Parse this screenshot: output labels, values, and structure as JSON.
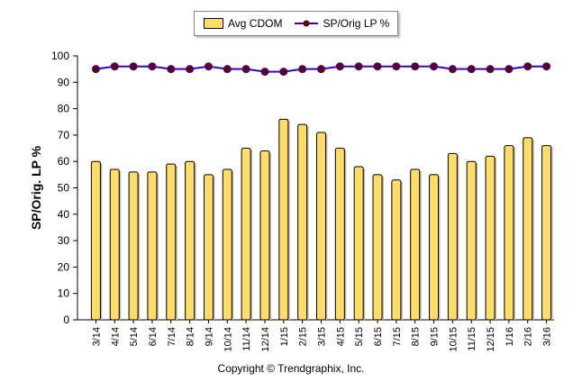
{
  "chart_data": {
    "type": "bar+line",
    "categories": [
      "3/14",
      "4/14",
      "5/14",
      "6/14",
      "7/14",
      "8/14",
      "9/14",
      "10/14",
      "11/14",
      "12/14",
      "1/15",
      "2/15",
      "3/15",
      "4/15",
      "5/15",
      "6/15",
      "7/15",
      "8/15",
      "9/15",
      "10/15",
      "11/15",
      "12/15",
      "1/16",
      "2/16",
      "3/16"
    ],
    "series": [
      {
        "name": "Avg CDOM",
        "type": "bar",
        "color": "#FFDD66",
        "values": [
          60,
          57,
          56,
          56,
          59,
          60,
          55,
          57,
          65,
          64,
          76,
          74,
          71,
          65,
          58,
          55,
          53,
          57,
          55,
          63,
          60,
          62,
          66,
          69,
          66
        ]
      },
      {
        "name": "SP/Orig LP %",
        "type": "line",
        "color": "#3300CC",
        "marker_color": "#660000",
        "values": [
          95,
          96,
          96,
          96,
          95,
          95,
          96,
          95,
          95,
          94,
          94,
          95,
          95,
          96,
          96,
          96,
          96,
          96,
          96,
          95,
          95,
          95,
          95,
          96,
          96
        ]
      }
    ],
    "ylabel": "SP/Orig. LP %",
    "ylim": [
      0,
      100
    ],
    "yticks": [
      0,
      10,
      20,
      30,
      40,
      50,
      60,
      70,
      80,
      90,
      100
    ],
    "grid": false,
    "legend": "top"
  },
  "copyright": "Copyright © Trendgraphix, Inc."
}
